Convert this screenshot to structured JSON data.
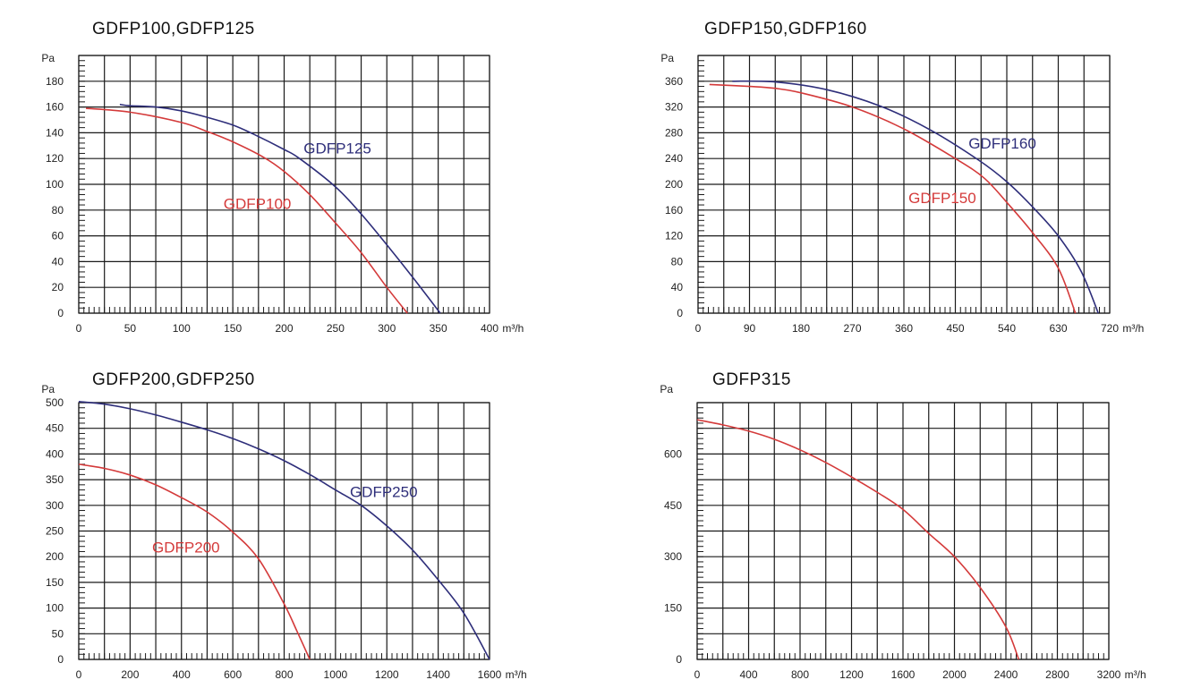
{
  "chart_data": [
    {
      "type": "line",
      "title": "GDFP100,GDFP125",
      "ylabel": "Pa",
      "xunit": "m³/h",
      "xlim": [
        0,
        400
      ],
      "ylim": [
        0,
        200
      ],
      "x_ticks": [
        0,
        50,
        100,
        150,
        200,
        250,
        300,
        350,
        400
      ],
      "y_ticks": [
        0,
        20,
        40,
        60,
        80,
        100,
        120,
        140,
        160,
        180
      ],
      "x_grid_step": 25,
      "y_grid_step": 20,
      "grid": true,
      "series": [
        {
          "name": "GDFP100",
          "color": "#d43a3a",
          "label_at": [
            141,
            85
          ],
          "x": [
            7,
            50,
            100,
            125,
            150,
            180,
            200,
            225,
            250,
            275,
            300,
            320
          ],
          "y": [
            159,
            156,
            148,
            141,
            133,
            121,
            110,
            92,
            70,
            47,
            20,
            0
          ]
        },
        {
          "name": "GDFP125",
          "color": "#2e2e7a",
          "label_at": [
            219,
            128
          ],
          "x": [
            40,
            50,
            75,
            100,
            125,
            150,
            170,
            200,
            215,
            250,
            275,
            300,
            325,
            352
          ],
          "y": [
            162,
            161,
            160,
            157,
            152,
            146,
            139,
            127,
            120,
            98,
            77,
            53,
            28,
            0
          ]
        }
      ]
    },
    {
      "type": "line",
      "title": "GDFP150,GDFP160",
      "ylabel": "Pa",
      "xunit": "m³/h",
      "xlim": [
        0,
        720
      ],
      "ylim": [
        0,
        400
      ],
      "x_ticks": [
        0,
        90,
        180,
        270,
        360,
        450,
        540,
        630,
        720
      ],
      "y_ticks": [
        0,
        40,
        80,
        120,
        160,
        200,
        240,
        280,
        320,
        360
      ],
      "x_grid_step": 45,
      "y_grid_step": 40,
      "grid": true,
      "series": [
        {
          "name": "GDFP150",
          "color": "#d43a3a",
          "label_at": [
            368,
            179
          ],
          "x": [
            20,
            90,
            135,
            180,
            270,
            360,
            450,
            500,
            540,
            585,
            630,
            660
          ],
          "y": [
            355,
            352,
            349,
            342,
            320,
            286,
            240,
            210,
            172,
            125,
            70,
            0
          ]
        },
        {
          "name": "GDFP160",
          "color": "#2e2e7a",
          "label_at": [
            473,
            264
          ],
          "x": [
            60,
            135,
            225,
            320,
            405,
            490,
            540,
            585,
            630,
            670,
            700
          ],
          "y": [
            360,
            359,
            347,
            321,
            285,
            238,
            204,
            165,
            120,
            65,
            0
          ]
        }
      ]
    },
    {
      "type": "line",
      "title": "GDFP200,GDFP250",
      "ylabel": "Pa",
      "xunit": "m³/h",
      "xlim": [
        0,
        1600
      ],
      "ylim": [
        0,
        500
      ],
      "x_ticks": [
        0,
        200,
        400,
        600,
        800,
        1000,
        1200,
        1400,
        1600
      ],
      "y_ticks": [
        0,
        50,
        100,
        150,
        200,
        250,
        300,
        350,
        400,
        450,
        500
      ],
      "x_grid_step": 100,
      "y_grid_step": 50,
      "grid": true,
      "series": [
        {
          "name": "GDFP200",
          "color": "#d43a3a",
          "label_at": [
            286,
            219
          ],
          "x": [
            0,
            100,
            200,
            300,
            400,
            500,
            600,
            700,
            800,
            850,
            900
          ],
          "y": [
            380,
            372,
            359,
            340,
            315,
            287,
            248,
            196,
            108,
            55,
            0
          ]
        },
        {
          "name": "GDFP250",
          "color": "#2e2e7a",
          "label_at": [
            1056,
            327
          ],
          "x": [
            0,
            100,
            200,
            300,
            400,
            500,
            600,
            700,
            800,
            900,
            1000,
            1100,
            1200,
            1300,
            1400,
            1500,
            1600
          ],
          "y": [
            502,
            497,
            488,
            476,
            462,
            447,
            430,
            410,
            387,
            360,
            330,
            300,
            260,
            213,
            155,
            90,
            0
          ]
        }
      ]
    },
    {
      "type": "line",
      "title": "GDFP315",
      "ylabel": "Pa",
      "xunit": "m³/h",
      "xlim": [
        0,
        3200
      ],
      "ylim": [
        0,
        750
      ],
      "x_ticks": [
        0,
        400,
        800,
        1200,
        1600,
        2000,
        2400,
        2800,
        3200
      ],
      "y_ticks": [
        0,
        150,
        300,
        450,
        600
      ],
      "x_grid_step": 200,
      "y_grid_step": 75,
      "grid": true,
      "series": [
        {
          "name": "GDFP315",
          "color": "#d43a3a",
          "label_at": null,
          "x": [
            0,
            200,
            400,
            600,
            800,
            1000,
            1200,
            1400,
            1600,
            1800,
            2000,
            2200,
            2400,
            2500
          ],
          "y": [
            700,
            685,
            667,
            643,
            612,
            575,
            533,
            488,
            438,
            368,
            300,
            210,
            95,
            0
          ]
        }
      ]
    }
  ]
}
